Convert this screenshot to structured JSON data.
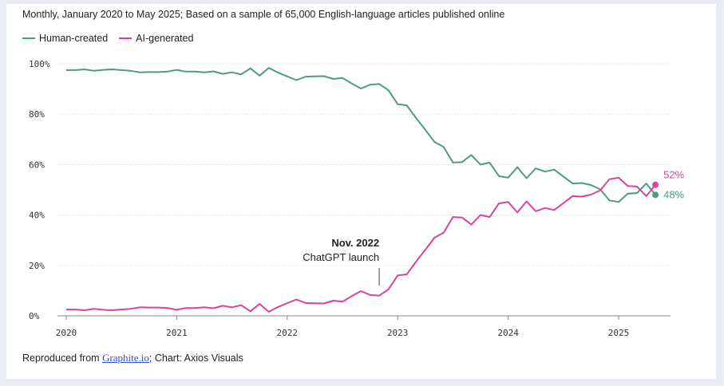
{
  "chart_data": {
    "type": "line",
    "subtitle": "Monthly, January 2020 to May 2025; Based on a sample of 65,000 English-language articles published online",
    "ylim": [
      0,
      100
    ],
    "y_ticks": [
      "0%",
      "20%",
      "40%",
      "60%",
      "80%",
      "100%"
    ],
    "y_tick_values": [
      0,
      20,
      40,
      60,
      80,
      100
    ],
    "x_ticks": [
      "2020",
      "2021",
      "2022",
      "2023",
      "2024",
      "2025"
    ],
    "x_tick_values": [
      2020,
      2021,
      2022,
      2023,
      2024,
      2025
    ],
    "x_start": 2020.0,
    "x_step": 0.08333,
    "series": [
      {
        "name": "Human-created",
        "color": "#4c9a87",
        "end_label": "48%",
        "values": [
          97.5,
          97.5,
          97.8,
          97.2,
          97.6,
          97.8,
          97.5,
          97.2,
          96.6,
          96.7,
          96.7,
          96.9,
          97.6,
          96.9,
          96.9,
          96.6,
          97.0,
          96.0,
          96.6,
          95.8,
          98.2,
          95.3,
          98.4,
          96.5,
          95.0,
          93.5,
          94.9,
          95.0,
          95.1,
          94.0,
          94.4,
          92.2,
          90.2,
          91.7,
          92.0,
          89.5,
          84.0,
          83.5,
          78.5,
          73.8,
          69.0,
          67.0,
          60.8,
          61.0,
          63.8,
          60.0,
          60.8,
          55.4,
          54.8,
          59.0,
          54.6,
          58.5,
          57.2,
          58.0,
          55.3,
          52.5,
          52.7,
          51.9,
          50.2,
          45.8,
          45.2,
          48.5,
          48.7,
          52.5,
          48.0
        ]
      },
      {
        "name": "AI-generated",
        "color": "#d9449a",
        "end_label": "52%",
        "values": [
          2.5,
          2.5,
          2.2,
          2.8,
          2.4,
          2.2,
          2.5,
          2.8,
          3.4,
          3.3,
          3.3,
          3.1,
          2.4,
          3.1,
          3.1,
          3.4,
          3.0,
          4.0,
          3.4,
          4.2,
          1.8,
          4.7,
          1.6,
          3.5,
          5.0,
          6.5,
          5.1,
          5.0,
          4.9,
          6.0,
          5.6,
          7.8,
          9.8,
          8.3,
          8.0,
          10.5,
          16.0,
          16.5,
          21.5,
          26.2,
          31.0,
          33.0,
          39.2,
          39.0,
          36.2,
          40.0,
          39.2,
          44.6,
          45.2,
          41.0,
          45.4,
          41.5,
          42.8,
          42.0,
          44.7,
          47.5,
          47.3,
          48.1,
          49.8,
          54.2,
          54.8,
          51.5,
          51.3,
          47.5,
          52.0
        ]
      }
    ],
    "annotation": {
      "title": "Nov. 2022",
      "text": "ChatGPT launch",
      "x": 2022.833
    },
    "legend": [
      "Human-created",
      "AI-generated"
    ]
  },
  "footer": {
    "prefix": "Reproduced from ",
    "link": "Graphite.io",
    "suffix": "; Chart: Axios Visuals"
  }
}
